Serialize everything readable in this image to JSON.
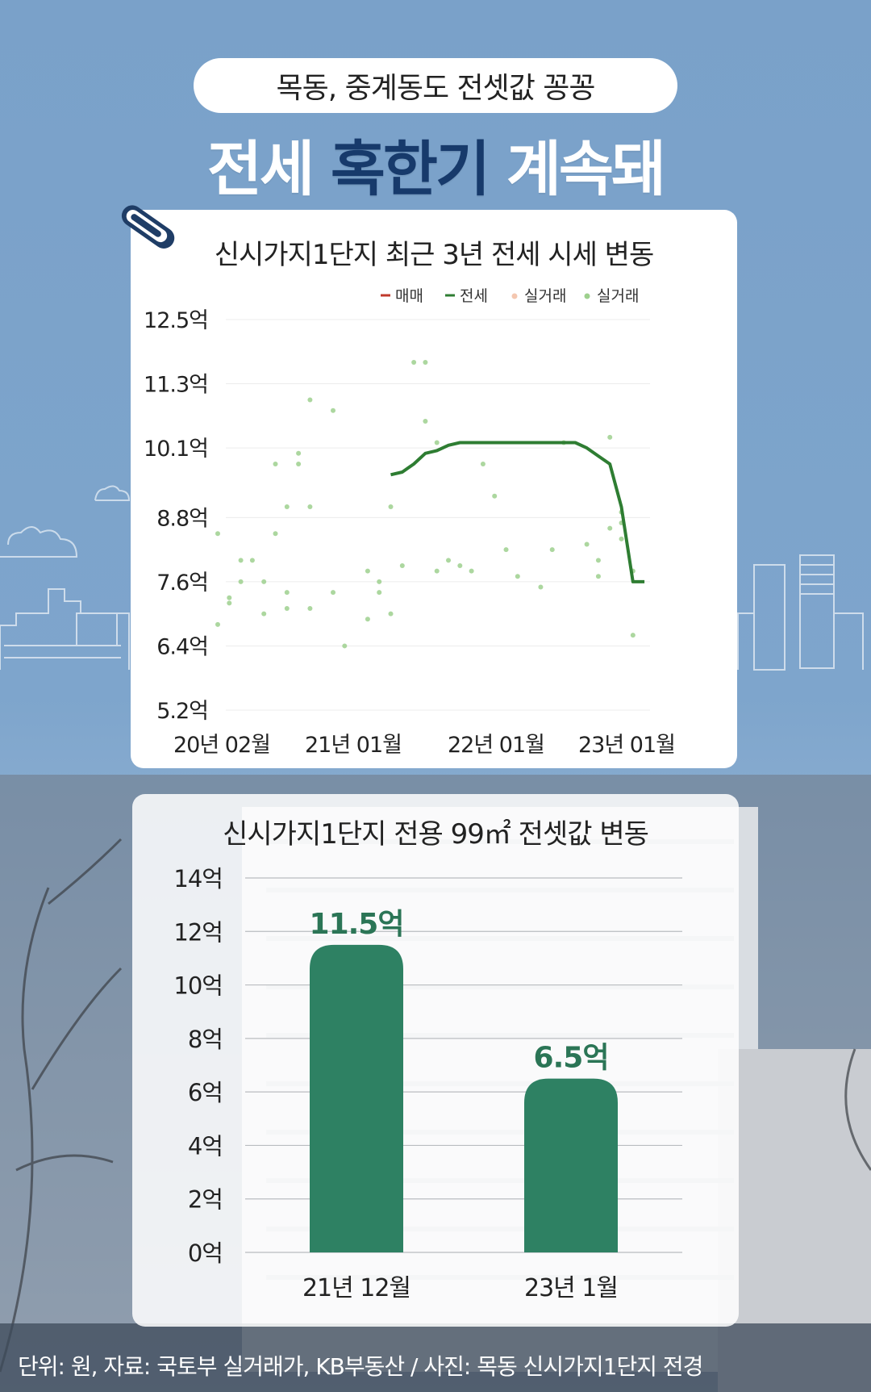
{
  "header": {
    "top_pill": "목동, 중계동도 전셋값 꽁꽁",
    "headline_part1": "전세 ",
    "headline_accent": "혹한기",
    "headline_part2": " 계속돼"
  },
  "chart_data": [
    {
      "type": "line",
      "title": "신시가지1단지 최근 3년 전세 시세 변동",
      "legend": [
        "매매",
        "전세",
        "실거래",
        "실거래"
      ],
      "legend_placement": "top-right",
      "legend_colors": {
        "매매": "#c0392b",
        "전세": "#2e7d32",
        "실거래_1": "#f4c7b0",
        "실거래_2": "#9ed08e"
      },
      "y_ticks": [
        "12.5억",
        "11.3억",
        "10.1억",
        "8.8억",
        "7.6억",
        "6.4억",
        "5.2억"
      ],
      "y_tick_values": [
        12.5,
        11.3,
        10.1,
        8.8,
        7.6,
        6.4,
        5.2
      ],
      "ylim": [
        5.2,
        12.5
      ],
      "x_ticks": [
        "20년 02월",
        "21년 01월",
        "22년 01월",
        "23년 01월"
      ],
      "grid": true,
      "series": [
        {
          "name": "전세",
          "color": "#2e7d32",
          "x": [
            "2021-05",
            "2021-06",
            "2021-07",
            "2021-08",
            "2021-09",
            "2021-10",
            "2021-11",
            "2021-12",
            "2022-01",
            "2022-03",
            "2022-06",
            "2022-09",
            "2022-10",
            "2022-11",
            "2022-12",
            "2023-01",
            "2023-02",
            "2023-03"
          ],
          "values": [
            9.6,
            9.65,
            9.8,
            10.0,
            10.05,
            10.15,
            10.2,
            10.2,
            10.2,
            10.2,
            10.2,
            10.2,
            10.1,
            9.95,
            9.8,
            9.0,
            7.6,
            7.6
          ]
        },
        {
          "name": "실거래",
          "color": "#9ed08e",
          "type": "scatter",
          "x": [
            "2020-02",
            "2020-02",
            "2020-03",
            "2020-03",
            "2020-04",
            "2020-04",
            "2020-05",
            "2020-06",
            "2020-06",
            "2020-07",
            "2020-07",
            "2020-08",
            "2020-08",
            "2020-08",
            "2020-09",
            "2020-09",
            "2020-10",
            "2020-10",
            "2020-10",
            "2020-12",
            "2020-12",
            "2021-01",
            "2021-03",
            "2021-03",
            "2021-04",
            "2021-04",
            "2021-05",
            "2021-05",
            "2021-06",
            "2021-07",
            "2021-08",
            "2021-08",
            "2021-09",
            "2021-09",
            "2021-10",
            "2021-11",
            "2021-12",
            "2022-01",
            "2022-02",
            "2022-03",
            "2022-04",
            "2022-06",
            "2022-07",
            "2022-08",
            "2022-10",
            "2022-11",
            "2022-11",
            "2022-12",
            "2022-12",
            "2023-01",
            "2023-01",
            "2023-01",
            "2023-02",
            "2023-02"
          ],
          "values": [
            8.5,
            6.8,
            7.3,
            7.2,
            8.0,
            7.6,
            8.0,
            7.0,
            7.6,
            8.5,
            9.8,
            9.0,
            7.4,
            7.1,
            9.8,
            10.0,
            11.0,
            9.0,
            7.1,
            10.8,
            7.4,
            6.4,
            7.8,
            6.9,
            7.6,
            7.4,
            9.0,
            7.0,
            7.9,
            11.7,
            11.7,
            10.6,
            7.8,
            10.2,
            8.0,
            7.9,
            7.8,
            9.8,
            9.2,
            8.2,
            7.7,
            7.5,
            8.2,
            10.2,
            8.3,
            8.0,
            7.7,
            8.6,
            10.3,
            8.4,
            8.9,
            8.7,
            7.8,
            6.6
          ]
        }
      ]
    },
    {
      "type": "bar",
      "title": "신시가지1단지 전용 99㎡ 전셋값 변동",
      "categories": [
        "21년 12월",
        "23년 1월"
      ],
      "values": [
        11.5,
        6.5
      ],
      "value_labels": [
        "11.5억",
        "6.5억"
      ],
      "y_ticks": [
        "14억",
        "12억",
        "10억",
        "8억",
        "6억",
        "4억",
        "2억",
        "0억"
      ],
      "y_tick_values": [
        14,
        12,
        10,
        8,
        6,
        4,
        2,
        0
      ],
      "ylim": [
        0,
        14
      ],
      "color": "#2e8163",
      "grid": true
    }
  ],
  "footer": "단위: 원, 자료: 국토부 실거래가, KB부동산 / 사진: 목동 신시가지1단지 전경"
}
